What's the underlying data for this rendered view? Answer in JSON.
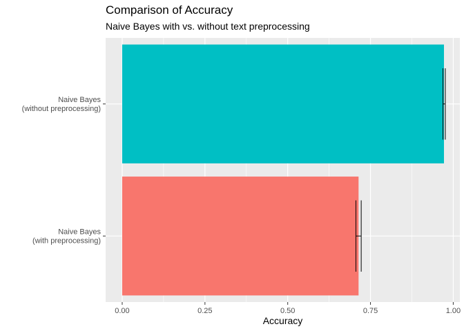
{
  "chart_data": {
    "type": "bar",
    "orientation": "horizontal",
    "title": "Comparison of Accuracy",
    "subtitle": "Naive Bayes with vs. without text preprocessing",
    "xlabel": "Accuracy",
    "ylabel": "",
    "xlim": [
      -0.05,
      1.02
    ],
    "x_ticks": [
      "0.00",
      "0.25",
      "0.50",
      "0.75",
      "1.00"
    ],
    "x_tick_values": [
      0,
      0.25,
      0.5,
      0.75,
      1.0
    ],
    "grid": true,
    "legend": "none",
    "categories": [
      [
        "Naive Bayes",
        "(with preprocessing)"
      ],
      [
        "Naive Bayes",
        "(without preprocessing)"
      ]
    ],
    "values": [
      0.714,
      0.972
    ],
    "error_bars": [
      [
        0.706,
        0.722
      ],
      [
        0.969,
        0.976
      ]
    ],
    "colors": [
      "#F8766D",
      "#00BFC4"
    ]
  }
}
